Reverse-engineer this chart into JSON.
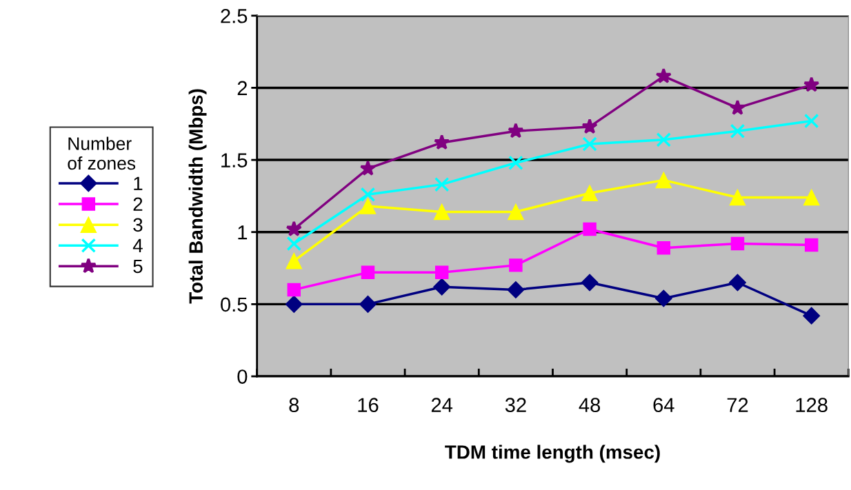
{
  "chart_data": {
    "type": "line",
    "xlabel": "TDM time length (msec)",
    "ylabel": "Total Bandwidth (Mbps)",
    "legend_title": "Number\nof zones",
    "categories": [
      "8",
      "16",
      "24",
      "32",
      "48",
      "64",
      "72",
      "128"
    ],
    "series": [
      {
        "name": "1",
        "color": "#000080",
        "marker": "diamond",
        "values": [
          0.5,
          0.5,
          0.62,
          0.6,
          0.65,
          0.54,
          0.65,
          0.42
        ]
      },
      {
        "name": "2",
        "color": "#ff00ff",
        "marker": "square",
        "values": [
          0.6,
          0.72,
          0.72,
          0.77,
          1.02,
          0.89,
          0.92,
          0.91
        ]
      },
      {
        "name": "3",
        "color": "#ffff00",
        "marker": "triangle",
        "values": [
          0.8,
          1.18,
          1.14,
          1.14,
          1.27,
          1.36,
          1.24,
          1.24
        ]
      },
      {
        "name": "4",
        "color": "#00ffff",
        "marker": "cross",
        "values": [
          0.92,
          1.26,
          1.33,
          1.48,
          1.61,
          1.64,
          1.7,
          1.77
        ]
      },
      {
        "name": "5",
        "color": "#800080",
        "marker": "star",
        "values": [
          1.02,
          1.44,
          1.62,
          1.7,
          1.73,
          2.08,
          1.86,
          2.02
        ]
      }
    ],
    "ylim": [
      0,
      2.5
    ],
    "yticks": [
      0,
      0.5,
      1,
      1.5,
      2,
      2.5
    ],
    "grid": "y",
    "legend": "left",
    "line_style": "solid"
  }
}
